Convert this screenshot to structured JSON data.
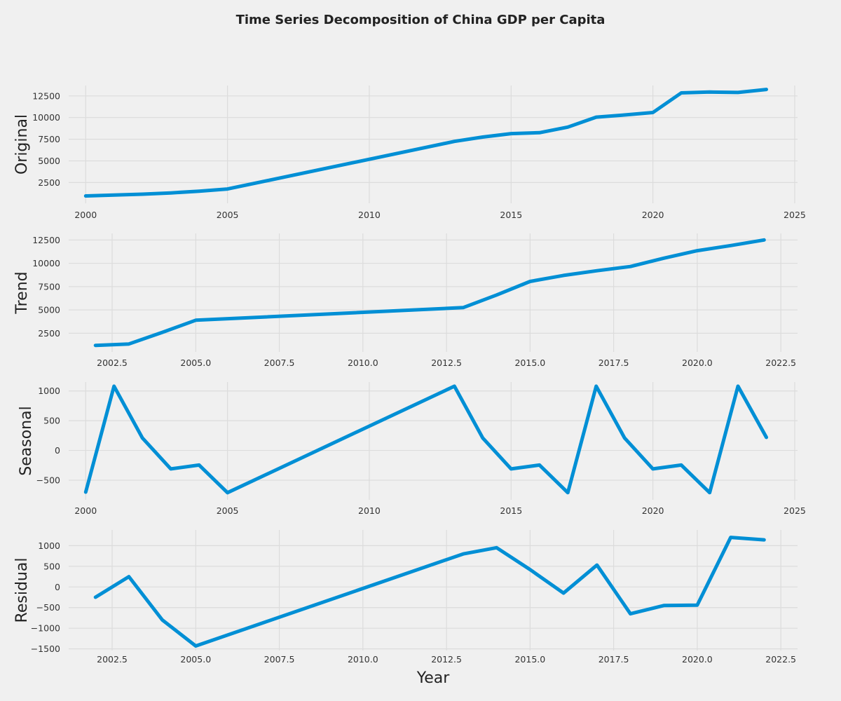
{
  "figure": {
    "title": "Time Series Decomposition of China GDP per Capita",
    "line_color": "#008fd5",
    "grid": true
  },
  "chart_data": [
    {
      "type": "line",
      "title": "",
      "ylabel": "Original",
      "xlabel": "",
      "xlim": [
        1999.4,
        2025.1
      ],
      "ylim": [
        100,
        13700
      ],
      "xticks": [
        2000,
        2005,
        2010,
        2015,
        2020,
        2025
      ],
      "xtick_labels": [
        "2000",
        "2005",
        "2010",
        "2015",
        "2020",
        "2025"
      ],
      "yticks": [
        2500,
        5000,
        7500,
        10000,
        12500
      ],
      "ytick_labels": [
        "2500",
        "5000",
        "7500",
        "10000",
        "12500"
      ],
      "series": [
        {
          "x": [
            2000,
            2001,
            2002,
            2003,
            2004,
            2005,
            2013,
            2014,
            2015,
            2016,
            2017,
            2018,
            2019,
            2020,
            2021,
            2022,
            2023,
            2024
          ],
          "values": [
            950,
            1050,
            1150,
            1300,
            1500,
            1750,
            7250,
            7750,
            8150,
            8250,
            8900,
            10050,
            10300,
            10580,
            12850,
            12950,
            12900,
            13250
          ]
        }
      ]
    },
    {
      "type": "line",
      "title": "",
      "ylabel": "Trend",
      "xlabel": "",
      "xlim": [
        2001.2,
        2023.0
      ],
      "ylim": [
        500,
        13200
      ],
      "xticks": [
        2002.5,
        2005.0,
        2007.5,
        2010.0,
        2012.5,
        2015.0,
        2017.5,
        2020.0,
        2022.5
      ],
      "xtick_labels": [
        "2002.5",
        "2005.0",
        "2007.5",
        "2010.0",
        "2012.5",
        "2015.0",
        "2017.5",
        "2020.0",
        "2022.5"
      ],
      "yticks": [
        2500,
        5000,
        7500,
        10000,
        12500
      ],
      "ytick_labels": [
        "2500",
        "5000",
        "7500",
        "10000",
        "12500"
      ],
      "series": [
        {
          "x": [
            2002,
            2003,
            2004,
            2005,
            2013,
            2014,
            2015,
            2016,
            2017,
            2018,
            2019,
            2020,
            2021,
            2022
          ],
          "values": [
            1200,
            1350,
            2600,
            3900,
            5250,
            6600,
            8050,
            8700,
            9200,
            9650,
            10550,
            11350,
            11900,
            12500
          ]
        }
      ]
    },
    {
      "type": "line",
      "title": "",
      "ylabel": "Seasonal",
      "xlabel": "",
      "xlim": [
        1999.4,
        2025.1
      ],
      "ylim": [
        -830,
        1150
      ],
      "xticks": [
        2000,
        2005,
        2010,
        2015,
        2020,
        2025
      ],
      "xtick_labels": [
        "2000",
        "2005",
        "2010",
        "2015",
        "2020",
        "2025"
      ],
      "yticks": [
        -500,
        0,
        500,
        1000
      ],
      "ytick_labels": [
        "−500",
        "0",
        "500",
        "1000"
      ],
      "series": [
        {
          "x": [
            2000,
            2001,
            2002,
            2003,
            2004,
            2005,
            2013,
            2014,
            2015,
            2016,
            2017,
            2018,
            2019,
            2020,
            2021,
            2022,
            2023,
            2024
          ],
          "values": [
            -700,
            1080,
            210,
            -310,
            -245,
            -710,
            1080,
            210,
            -310,
            -245,
            -710,
            1080,
            210,
            -310,
            -245,
            -710,
            1080,
            220
          ]
        }
      ]
    },
    {
      "type": "line",
      "title": "",
      "ylabel": "Residual",
      "xlabel": "Year",
      "xlim": [
        2001.2,
        2023.0
      ],
      "ylim": [
        -1540,
        1380
      ],
      "xticks": [
        2002.5,
        2005.0,
        2007.5,
        2010.0,
        2012.5,
        2015.0,
        2017.5,
        2020.0,
        2022.5
      ],
      "xtick_labels": [
        "2002.5",
        "2005.0",
        "2007.5",
        "2010.0",
        "2012.5",
        "2015.0",
        "2017.5",
        "2020.0",
        "2022.5"
      ],
      "yticks": [
        -1500,
        -1000,
        -500,
        0,
        500,
        1000
      ],
      "ytick_labels": [
        "−1500",
        "−1000",
        "−500",
        "0",
        "500",
        "1000"
      ],
      "series": [
        {
          "x": [
            2002,
            2003,
            2004,
            2005,
            2013,
            2014,
            2015,
            2016,
            2017,
            2018,
            2019,
            2020,
            2021,
            2022
          ],
          "values": [
            -250,
            250,
            -800,
            -1430,
            800,
            950,
            420,
            -150,
            530,
            -650,
            -450,
            -440,
            1200,
            1140
          ]
        }
      ]
    }
  ]
}
